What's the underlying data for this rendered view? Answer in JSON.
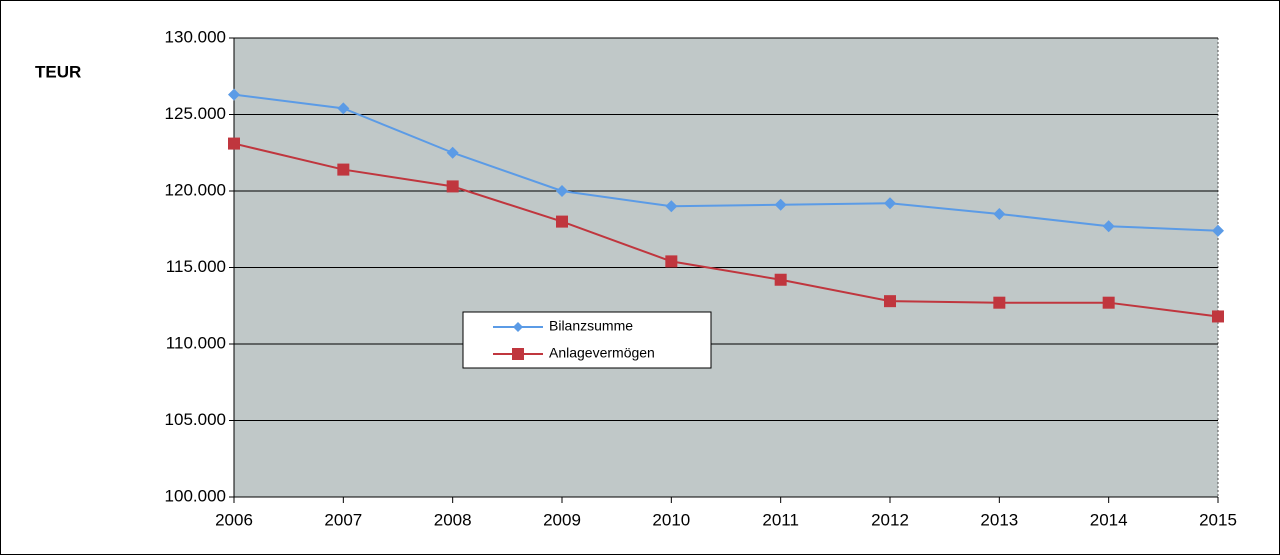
{
  "chart_data": {
    "type": "line",
    "y_label": "TEUR",
    "categories": [
      "2006",
      "2007",
      "2008",
      "2009",
      "2010",
      "2011",
      "2012",
      "2013",
      "2014",
      "2015"
    ],
    "series": [
      {
        "name": "Bilanzsumme",
        "color": "#5b9be6",
        "marker": "diamond",
        "values": [
          126300,
          125400,
          122500,
          120000,
          119000,
          119100,
          119200,
          118500,
          117700,
          117400
        ]
      },
      {
        "name": "Anlagevermögen",
        "color": "#c0363e",
        "marker": "square",
        "values": [
          123100,
          121400,
          120300,
          118000,
          115400,
          114200,
          112800,
          112700,
          112700,
          111800
        ]
      }
    ],
    "ylim": [
      100000,
      130000
    ],
    "yticks": [
      {
        "value": 100000,
        "label": "100.000"
      },
      {
        "value": 105000,
        "label": "105.000"
      },
      {
        "value": 110000,
        "label": "110.000"
      },
      {
        "value": 115000,
        "label": "115.000"
      },
      {
        "value": 120000,
        "label": "120.000"
      },
      {
        "value": 125000,
        "label": "125.000"
      },
      {
        "value": 130000,
        "label": "130.000"
      }
    ],
    "grid": true,
    "plot_background": "#c0c8c8"
  }
}
